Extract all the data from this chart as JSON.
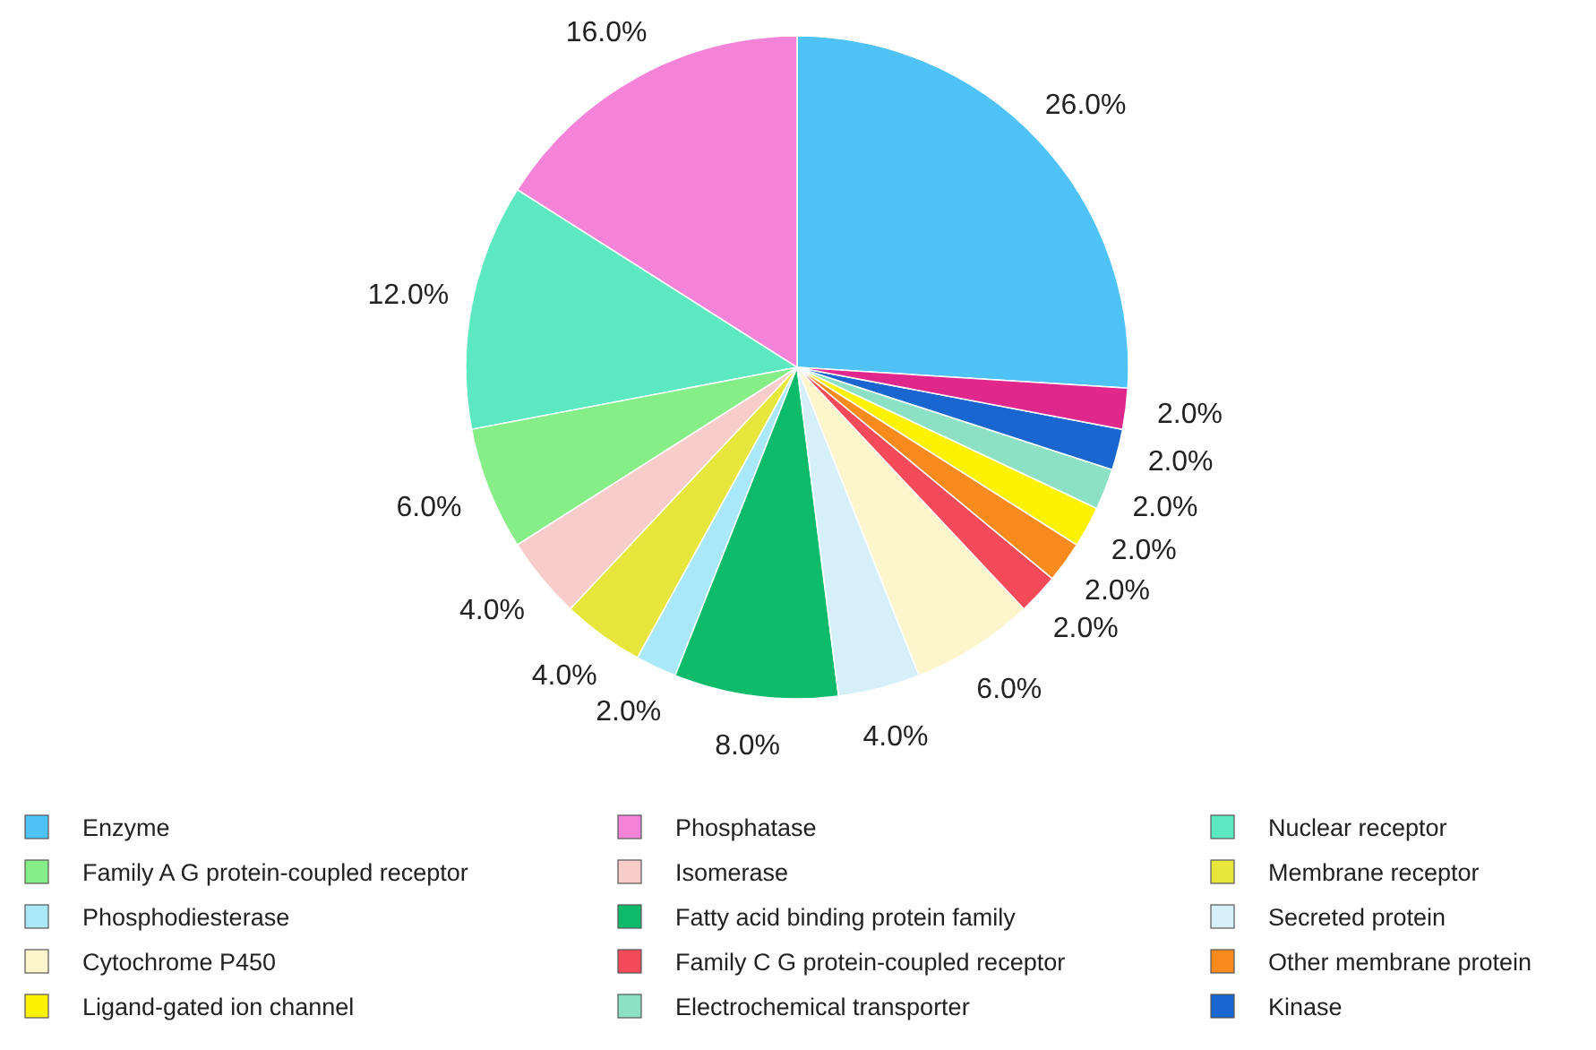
{
  "chart_data": {
    "type": "pie",
    "categories": [
      "Enzyme",
      "Phosphatase",
      "Nuclear receptor",
      "Family A G protein-coupled receptor",
      "Isomerase",
      "Membrane receptor",
      "Phosphodiesterase",
      "Fatty acid binding protein family",
      "Secreted protein",
      "Cytochrome P450",
      "Family C G protein-coupled receptor",
      "Other membrane protein",
      "Ligand-gated ion channel",
      "Electrochemical transporter",
      "Kinase",
      null
    ],
    "values": [
      26,
      16,
      12,
      6,
      4,
      4,
      2,
      8,
      4,
      6,
      2,
      2,
      2,
      2,
      2,
      2
    ],
    "value_labels": [
      "26.0%",
      "16.0%",
      "12.0%",
      "6.0%",
      "4.0%",
      "4.0%",
      "2.0%",
      "8.0%",
      "4.0%",
      "6.0%",
      "2.0%",
      "2.0%",
      "2.0%",
      "2.0%",
      "2.0%",
      "2.0%"
    ],
    "colors": [
      "#4fc3f7",
      "#f584d8",
      "#5ce8c0",
      "#86ee86",
      "#f9cccc",
      "#e6e63c",
      "#a8e8f8",
      "#0dbb6a",
      "#d6f0fa",
      "#fdf6cc",
      "#f44a5a",
      "#f98a1c",
      "#fdf200",
      "#8ce0c4",
      "#1a66d0",
      "#e0288c"
    ],
    "legend": "bottom"
  }
}
